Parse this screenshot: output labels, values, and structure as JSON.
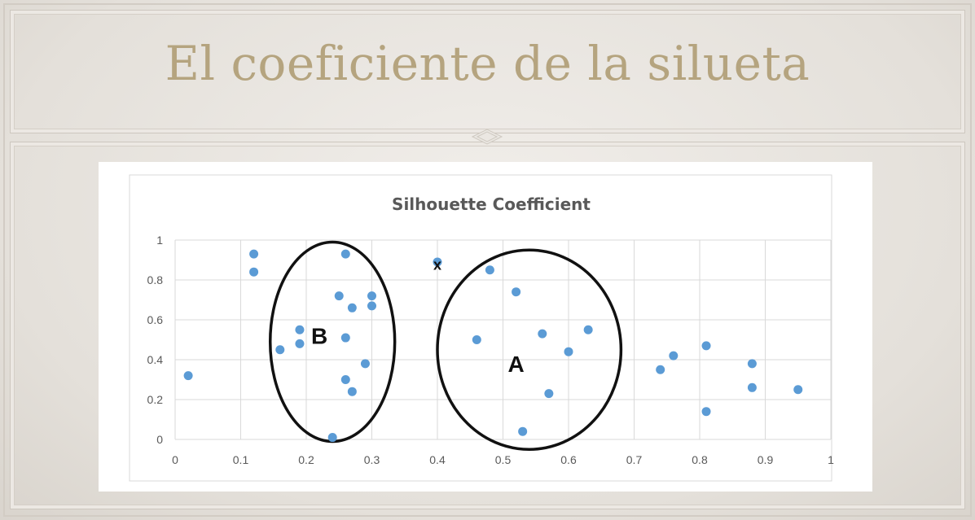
{
  "slide": {
    "title": "El coeficiente de la silueta"
  },
  "chart_data": {
    "type": "scatter",
    "title": "Silhouette Coefficient",
    "xlabel": "",
    "ylabel": "",
    "xlim": [
      0,
      1
    ],
    "ylim": [
      0,
      1
    ],
    "x_ticks": [
      "0",
      "0.1",
      "0.2",
      "0.3",
      "0.4",
      "0.5",
      "0.6",
      "0.7",
      "0.8",
      "0.9",
      "1"
    ],
    "y_ticks": [
      "0",
      "0.2",
      "0.4",
      "0.6",
      "0.8",
      "1"
    ],
    "grid": true,
    "point_color": "#5b9bd5",
    "points": [
      {
        "x": 0.02,
        "y": 0.32
      },
      {
        "x": 0.12,
        "y": 0.93
      },
      {
        "x": 0.12,
        "y": 0.84
      },
      {
        "x": 0.16,
        "y": 0.45
      },
      {
        "x": 0.19,
        "y": 0.55
      },
      {
        "x": 0.19,
        "y": 0.48
      },
      {
        "x": 0.24,
        "y": 0.01
      },
      {
        "x": 0.25,
        "y": 0.72
      },
      {
        "x": 0.26,
        "y": 0.93
      },
      {
        "x": 0.26,
        "y": 0.51
      },
      {
        "x": 0.26,
        "y": 0.3
      },
      {
        "x": 0.27,
        "y": 0.66
      },
      {
        "x": 0.27,
        "y": 0.24
      },
      {
        "x": 0.29,
        "y": 0.38
      },
      {
        "x": 0.3,
        "y": 0.72
      },
      {
        "x": 0.3,
        "y": 0.67
      },
      {
        "x": 0.4,
        "y": 0.89
      },
      {
        "x": 0.46,
        "y": 0.5
      },
      {
        "x": 0.48,
        "y": 0.85
      },
      {
        "x": 0.52,
        "y": 0.74
      },
      {
        "x": 0.53,
        "y": 0.04
      },
      {
        "x": 0.56,
        "y": 0.53
      },
      {
        "x": 0.57,
        "y": 0.23
      },
      {
        "x": 0.6,
        "y": 0.44
      },
      {
        "x": 0.63,
        "y": 0.55
      },
      {
        "x": 0.74,
        "y": 0.35
      },
      {
        "x": 0.76,
        "y": 0.42
      },
      {
        "x": 0.81,
        "y": 0.47
      },
      {
        "x": 0.81,
        "y": 0.14
      },
      {
        "x": 0.88,
        "y": 0.38
      },
      {
        "x": 0.88,
        "y": 0.26
      },
      {
        "x": 0.95,
        "y": 0.25
      }
    ],
    "annotations": [
      {
        "label": "B",
        "x": 0.22,
        "y": 0.52
      },
      {
        "label": "A",
        "x": 0.52,
        "y": 0.38
      },
      {
        "label": "x",
        "x": 0.4,
        "y": 0.88
      }
    ],
    "ellipses": [
      {
        "name": "B",
        "cx": 0.24,
        "cy": 0.49,
        "rx": 0.095,
        "ry": 0.5
      },
      {
        "name": "A",
        "cx": 0.54,
        "cy": 0.45,
        "rx": 0.14,
        "ry": 0.5
      }
    ]
  }
}
